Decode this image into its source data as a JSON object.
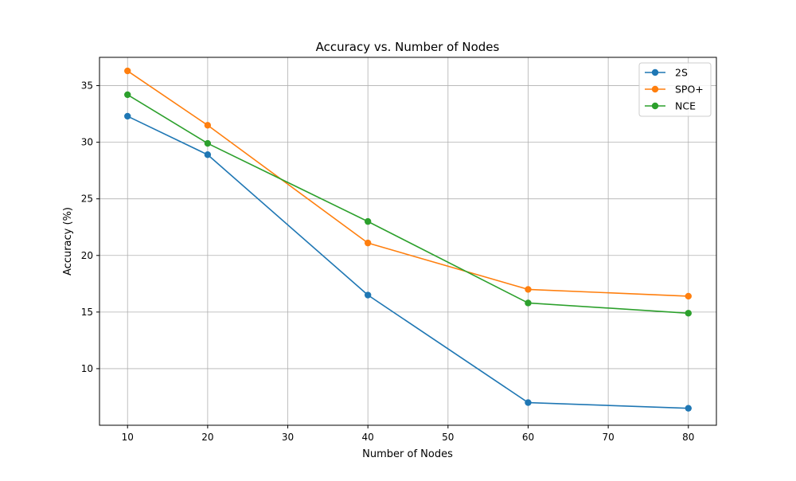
{
  "chart_data": {
    "type": "line",
    "title": "Accuracy vs. Number of Nodes",
    "xlabel": "Number of Nodes",
    "ylabel": "Accuracy (%)",
    "x": [
      10,
      20,
      40,
      60,
      80
    ],
    "xlim": [
      6.5,
      83.5
    ],
    "ylim": [
      5.0,
      37.5
    ],
    "xticks": [
      10,
      20,
      30,
      40,
      50,
      60,
      70,
      80
    ],
    "yticks": [
      10,
      15,
      20,
      25,
      30,
      35
    ],
    "grid": true,
    "legend_position": "top-right",
    "series": [
      {
        "name": "2S",
        "color": "#1f77b4",
        "marker": "circle",
        "values": [
          32.3,
          28.9,
          16.5,
          7.0,
          6.5
        ]
      },
      {
        "name": "SPO+",
        "color": "#ff7f0e",
        "marker": "circle",
        "values": [
          36.3,
          31.5,
          21.1,
          17.0,
          16.4
        ]
      },
      {
        "name": "NCE",
        "color": "#2ca02c",
        "marker": "circle",
        "values": [
          34.2,
          29.9,
          23.0,
          15.8,
          14.9
        ]
      }
    ]
  }
}
